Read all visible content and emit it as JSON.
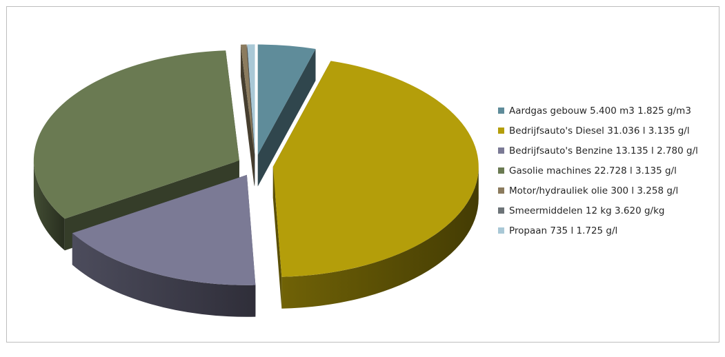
{
  "chart_data": {
    "type": "pie",
    "title": "",
    "legend_position": "right",
    "series": [
      {
        "name": "Aardgas gebouw 5.400 m3 1.825 g/m3",
        "value": 9855,
        "color": "#5f8c9a"
      },
      {
        "name": "Bedrijfsauto's Diesel 31.036 l 3.135 g/l",
        "value": 97298,
        "color": "#b49e0a"
      },
      {
        "name": "Bedrijfsauto's Benzine 13.135 l 2.780 g/l",
        "value": 36515,
        "color": "#7b7a95"
      },
      {
        "name": "Gasolie machines 22.728 l 3.135 g/l",
        "value": 71252,
        "color": "#6a7a52"
      },
      {
        "name": "Motor/hydrauliek olie 300 l 3.258 g/l",
        "value": 977,
        "color": "#8b7b5e"
      },
      {
        "name": "Smeermiddelen 12 kg 3.620 g/kg",
        "value": 43,
        "color": "#6d7478"
      },
      {
        "name": "Propaan 735 l 1.725 g/l",
        "value": 1268,
        "color": "#a9c8d6"
      }
    ]
  }
}
